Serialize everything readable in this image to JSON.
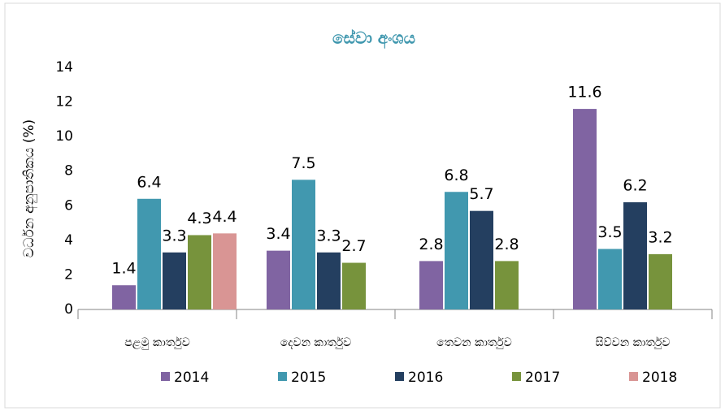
{
  "chart_data": {
    "type": "bar",
    "title": "සේවා අංශය",
    "y_label": "වර්ධන අනුපාතිකය (%)",
    "categories": [
      "පළමු කාර්තුව",
      "දෙවන කාර්තුව",
      "තෙවන කාර්තුව",
      "සිව්වන කාර්තුව"
    ],
    "series": [
      {
        "name": "2014",
        "color": "#8064a2",
        "values": [
          1.4,
          3.4,
          2.8,
          11.6
        ]
      },
      {
        "name": "2015",
        "color": "#4198af",
        "values": [
          6.4,
          7.5,
          6.8,
          3.5
        ]
      },
      {
        "name": "2016",
        "color": "#243f60",
        "values": [
          3.3,
          3.3,
          5.7,
          6.2
        ]
      },
      {
        "name": "2017",
        "color": "#77933c",
        "values": [
          4.3,
          2.7,
          2.8,
          3.2
        ]
      },
      {
        "name": "2018",
        "color": "#d99594",
        "values": [
          4.4,
          null,
          null,
          null
        ]
      }
    ],
    "ylim": [
      0,
      14
    ],
    "yticks": [
      0,
      2,
      4,
      6,
      8,
      10,
      12,
      14
    ],
    "grid": false,
    "legend": "bottom"
  }
}
